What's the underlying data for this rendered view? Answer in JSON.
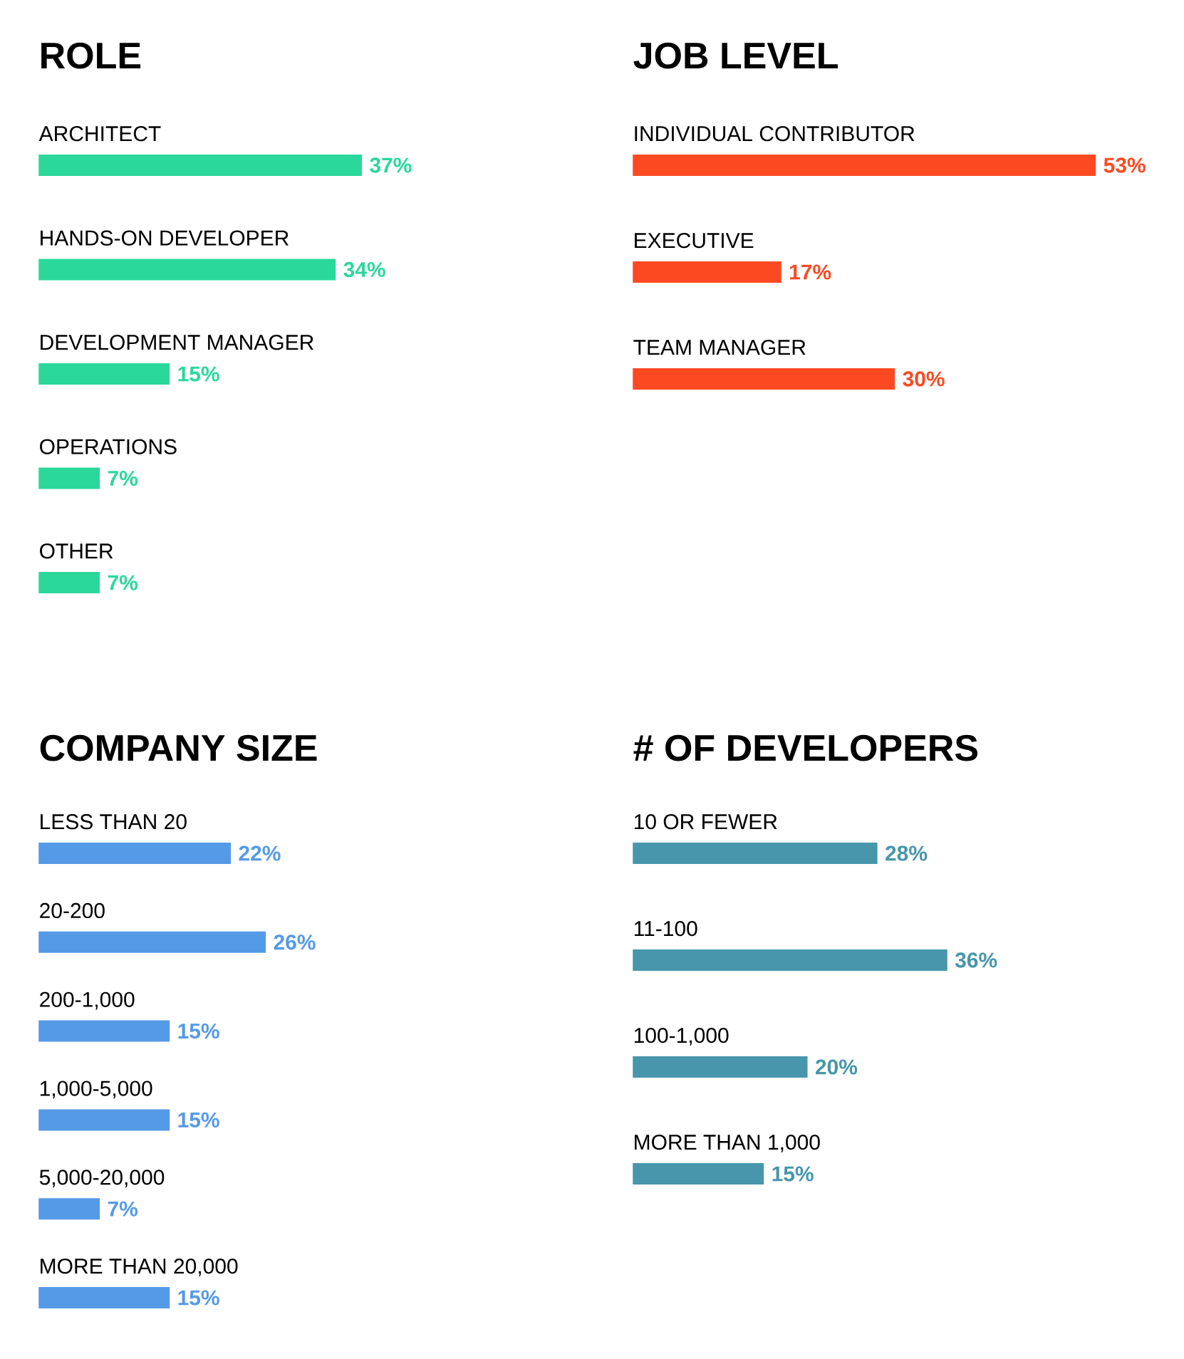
{
  "chart_data": [
    {
      "type": "bar",
      "orientation": "horizontal",
      "title": "ROLE",
      "categories": [
        "ARCHITECT",
        "HANDS-ON DEVELOPER",
        "DEVELOPMENT MANAGER",
        "OPERATIONS",
        "OTHER"
      ],
      "values": [
        37,
        34,
        15,
        7,
        7
      ],
      "value_labels": [
        "37%",
        "34%",
        "15%",
        "7%",
        "7%"
      ],
      "color": "#2bd89b"
    },
    {
      "type": "bar",
      "orientation": "horizontal",
      "title": "JOB LEVEL",
      "categories": [
        "INDIVIDUAL CONTRIBUTOR",
        "EXECUTIVE",
        "TEAM MANAGER"
      ],
      "values": [
        53,
        17,
        30
      ],
      "value_labels": [
        "53%",
        "17%",
        "30%"
      ],
      "color": "#fb4a22"
    },
    {
      "type": "bar",
      "orientation": "horizontal",
      "title": "COMPANY SIZE",
      "categories": [
        "LESS THAN 20",
        "20-200",
        "200-1,000",
        "1,000-5,000",
        "5,000-20,000",
        "MORE THAN 20,000"
      ],
      "values": [
        22,
        26,
        15,
        15,
        7,
        15
      ],
      "value_labels": [
        "22%",
        "26%",
        "15%",
        "15%",
        "7%",
        "15%"
      ],
      "color": "#559ae6"
    },
    {
      "type": "bar",
      "orientation": "horizontal",
      "title": "# OF DEVELOPERS",
      "categories": [
        "10 OR FEWER",
        "11-100",
        "100-1,000",
        "MORE THAN 1,000"
      ],
      "values": [
        28,
        36,
        20,
        15
      ],
      "value_labels": [
        "28%",
        "36%",
        "20%",
        "15%"
      ],
      "color": "#4796ab"
    }
  ]
}
